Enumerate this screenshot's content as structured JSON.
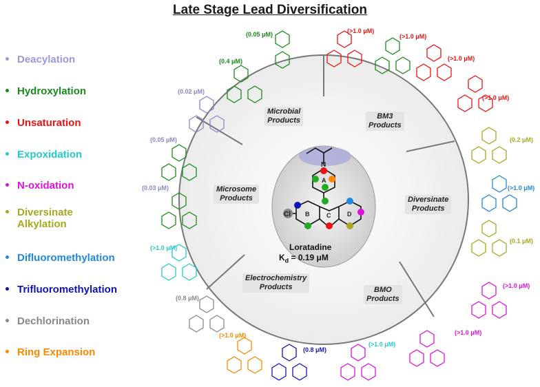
{
  "title": "Late Stage Lead Diversification",
  "legend": [
    {
      "label": "Deacylation",
      "color": "#9999dd"
    },
    {
      "label": "Hydroxylation",
      "color": "#1a8a1a"
    },
    {
      "label": "Unsaturation",
      "color": "#ee1111"
    },
    {
      "label": "Expoxidation",
      "color": "#22cccc"
    },
    {
      "label": "N-oxidation",
      "color": "#dd11dd"
    },
    {
      "label": "Diversinate",
      "label2": "Alkylation",
      "color": "#a8a820"
    },
    {
      "label": "Difluoromethylation",
      "color": "#2288dd"
    },
    {
      "label": "Trifluoromethylation",
      "color": "#1111bb"
    },
    {
      "label": "Dechlorination",
      "color": "#888888"
    },
    {
      "label": "Ring Expansion",
      "color": "#ff8800"
    }
  ],
  "regions": {
    "microbial": {
      "line1": "Microbial",
      "line2": "Products"
    },
    "bm3": {
      "line1": "BM3",
      "line2": "Products"
    },
    "microsome": {
      "line1": "Microsome",
      "line2": "Products"
    },
    "diversinate": {
      "line1": "Diversinate",
      "line2": "Products"
    },
    "electrochemistry": {
      "line1": "Electrochemistry",
      "line2": "Products"
    },
    "bmo": {
      "line1": "BMO",
      "line2": "Products"
    }
  },
  "center": {
    "name": "Loratadine",
    "kd_prefix": "K",
    "kd_sub": "d",
    "kd_value": " = 0.19 μM",
    "ring_a": "A",
    "ring_b": "B",
    "ring_c": "C",
    "ring_d": "D",
    "cl": "Cl",
    "n": "N"
  },
  "values": {
    "v1": "(0.05 μM)",
    "v2": "(0.4 μM)",
    "v3": "(0.02 μM)",
    "v4": "(0.05 μM)",
    "v5": "(0.03 μM)",
    "v6": "(>1.0 μM)",
    "v7": "(0.8 μM)",
    "v8": "(>1.0 μM)",
    "v9": "(0.8 μM)",
    "v10": "(>1.0 μM)",
    "v11": "(>1.0 μM)",
    "v12": "(>1.0 μM)",
    "v13": "(>1.0 μM)",
    "v14": "(0.2 μM)",
    "v15": "(>1.0 μM)",
    "v16": "(0.1 μM)",
    "v17": "(>1.0 μM)",
    "v18": "(>1.0 μM)",
    "v19": "(>1.0 μM)"
  }
}
